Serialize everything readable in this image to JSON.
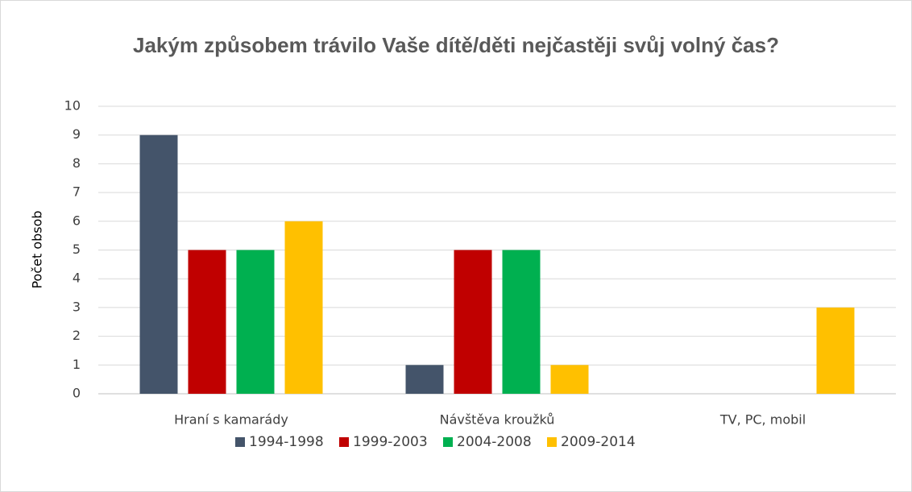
{
  "chart_data": {
    "type": "bar",
    "title": "Jakým způsobem trávilo Vaše dítě/děti nejčastěji svůj volný čas?",
    "y_label": "Počet obsob",
    "categories": [
      "Hraní s kamarády",
      "Návštěva kroužků",
      "TV, PC, mobil"
    ],
    "series": [
      {
        "name": "1994-1998",
        "color": "#44546a",
        "values": [
          9,
          1,
          0
        ]
      },
      {
        "name": "1999-2003",
        "color": "#c00000",
        "values": [
          5,
          5,
          0
        ]
      },
      {
        "name": "2004-2008",
        "color": "#00b050",
        "values": [
          5,
          5,
          0
        ]
      },
      {
        "name": "2009-2014",
        "color": "#ffc000",
        "values": [
          6,
          1,
          3
        ]
      }
    ],
    "ylim": [
      0,
      10
    ],
    "yticks": [
      0,
      1,
      2,
      3,
      4,
      5,
      6,
      7,
      8,
      9,
      10
    ],
    "grid": true,
    "legend": "bottom"
  }
}
